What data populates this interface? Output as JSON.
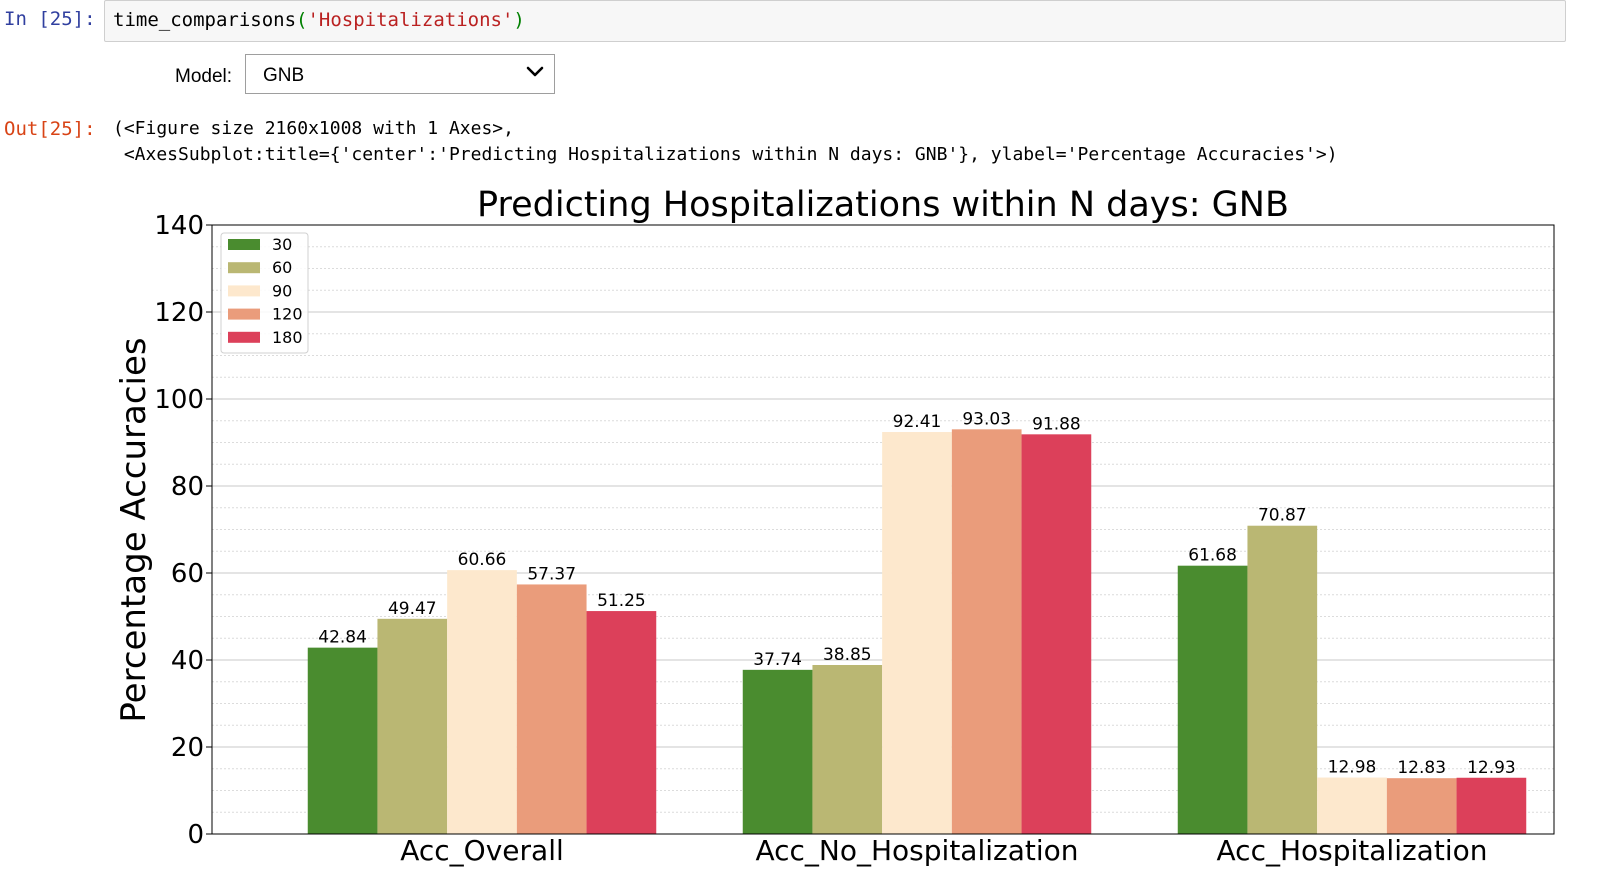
{
  "cell_in": {
    "prompt": "In [25]:",
    "code_fn": "time_comparisons",
    "code_open": "(",
    "code_str": "'Hospitalizations'",
    "code_close": ")"
  },
  "widget": {
    "label": "Model:",
    "selected": "GNB"
  },
  "cell_out": {
    "prompt": "Out[25]:",
    "line1": "(<Figure size 2160x1008 with 1 Axes>,",
    "line2": " <AxesSubplot:title={'center':'Predicting Hospitalizations within N days: GNB'}, ylabel='Percentage Accuracies'>)"
  },
  "chart_data": {
    "type": "bar",
    "title": "Predicting Hospitalizations within N days: GNB",
    "ylabel": "Percentage Accuracies",
    "xlabel": "",
    "ylim": [
      0,
      140
    ],
    "yticks": [
      0,
      20,
      40,
      60,
      80,
      100,
      120,
      140
    ],
    "grid": true,
    "legend_position": "top-left",
    "categories": [
      "Acc_Overall",
      "Acc_No_Hospitalization",
      "Acc_Hospitalization"
    ],
    "series": [
      {
        "name": "30",
        "color": "#4a8c2f",
        "values": [
          42.84,
          37.74,
          61.68
        ]
      },
      {
        "name": "60",
        "color": "#bab773",
        "values": [
          49.47,
          38.85,
          70.87
        ]
      },
      {
        "name": "90",
        "color": "#fde8cd",
        "values": [
          60.66,
          92.41,
          12.98
        ]
      },
      {
        "name": "120",
        "color": "#ea9c7b",
        "values": [
          57.37,
          93.03,
          12.83
        ]
      },
      {
        "name": "180",
        "color": "#dc405a",
        "values": [
          51.25,
          91.88,
          12.93
        ]
      }
    ]
  }
}
